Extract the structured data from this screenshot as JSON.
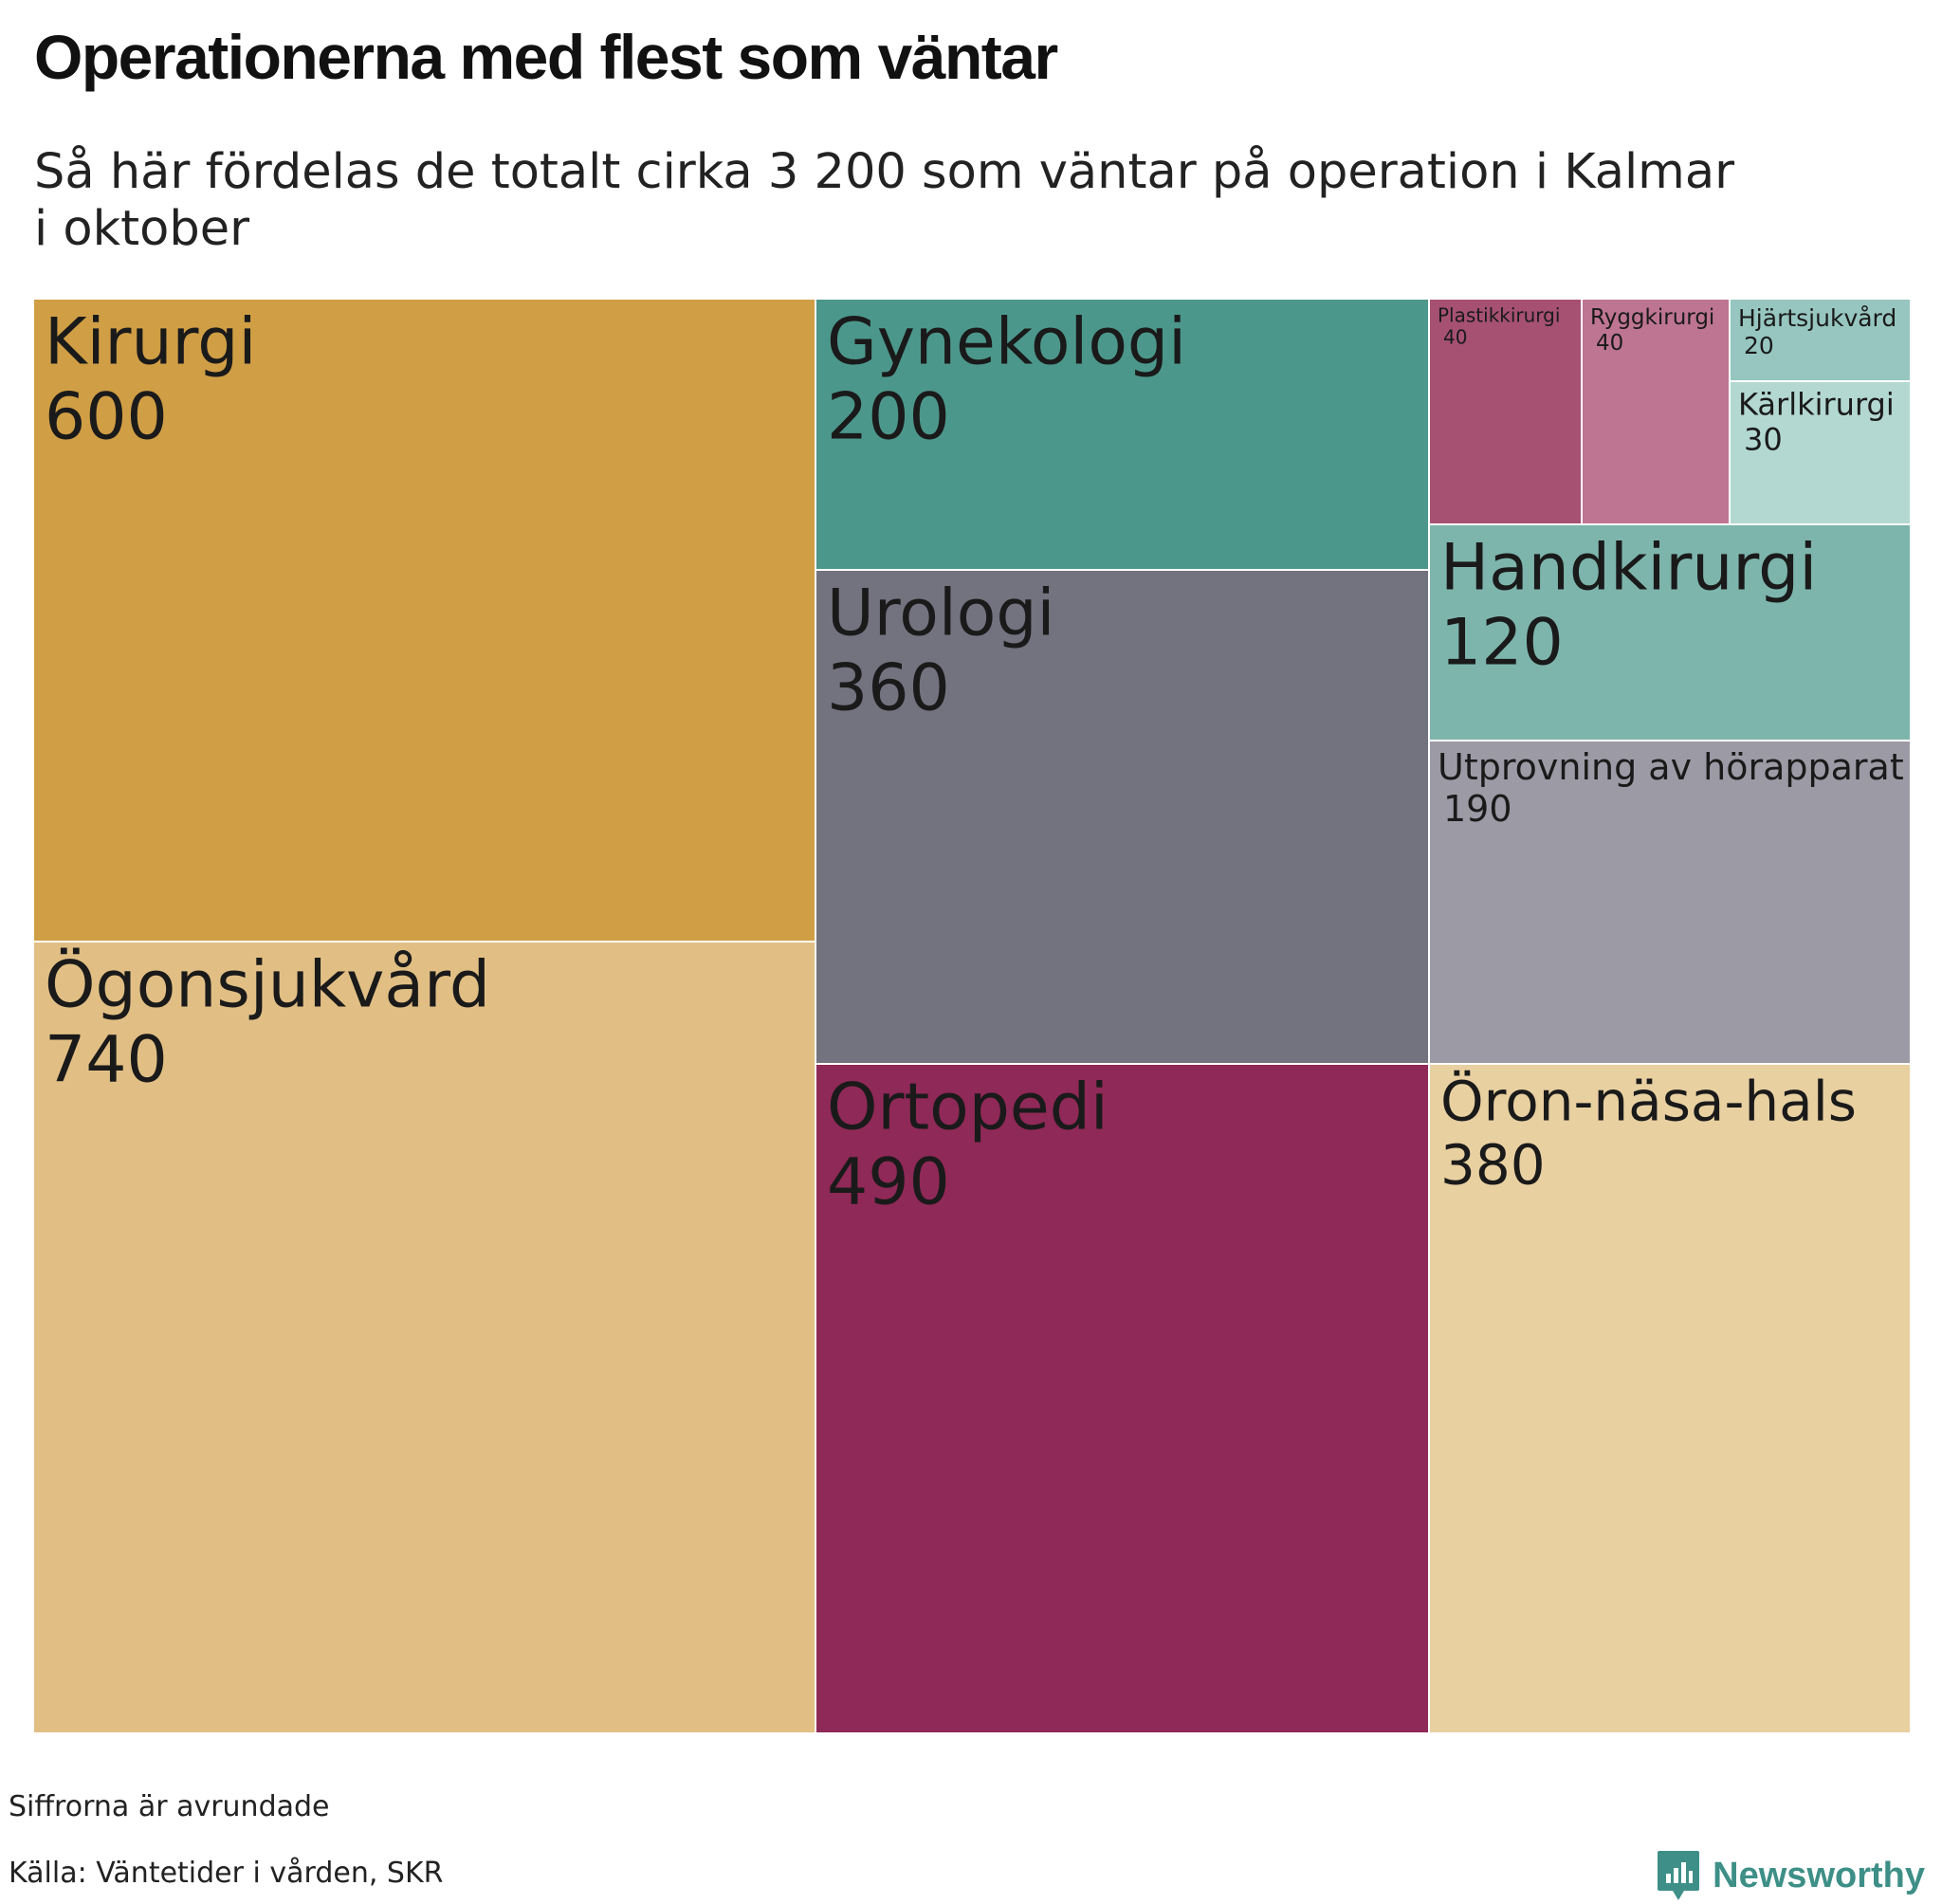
{
  "header": {
    "title": "Operationerna med flest som väntar",
    "subtitle": "Så här fördelas de totalt cirka 3 200 som väntar på operation i Kalmar i oktober"
  },
  "chart_data": {
    "type": "treemap",
    "title": "Operationerna med flest som väntar",
    "subtitle": "Så här fördelas de totalt cirka 3 200 som väntar på operation i Kalmar i oktober",
    "items": [
      {
        "name": "Kirurgi",
        "value": 600,
        "color": "#d09e45"
      },
      {
        "name": "Ögonsjukvård",
        "value": 740,
        "color": "#e1bf84"
      },
      {
        "name": "Gynekologi",
        "value": 200,
        "color": "#4c978b"
      },
      {
        "name": "Urologi",
        "value": 360,
        "color": "#73727f"
      },
      {
        "name": "Ortopedi",
        "value": 490,
        "color": "#8f2957"
      },
      {
        "name": "Plastikkirurgi",
        "value": 40,
        "color": "#a65172"
      },
      {
        "name": "Ryggkirurgi",
        "value": 40,
        "color": "#be7591"
      },
      {
        "name": "Hjärtsjukvård",
        "value": 20,
        "color": "#96c6bf"
      },
      {
        "name": "Kärlkirurgi",
        "value": 30,
        "color": "#b3d8d1"
      },
      {
        "name": "Handkirurgi",
        "value": 120,
        "color": "#7db5ac"
      },
      {
        "name": "Utprovning av hörapparat",
        "value": 190,
        "color": "#9c9aa5"
      },
      {
        "name": "Öron-näsa-hals",
        "value": 380,
        "color": "#e8d0a1"
      }
    ]
  },
  "footer": {
    "note": "Siffrorna är avrundade",
    "source": "Källa: Väntetider i vården, SKR",
    "brand": "Newsworthy",
    "brand_color": "#3d8f87"
  }
}
